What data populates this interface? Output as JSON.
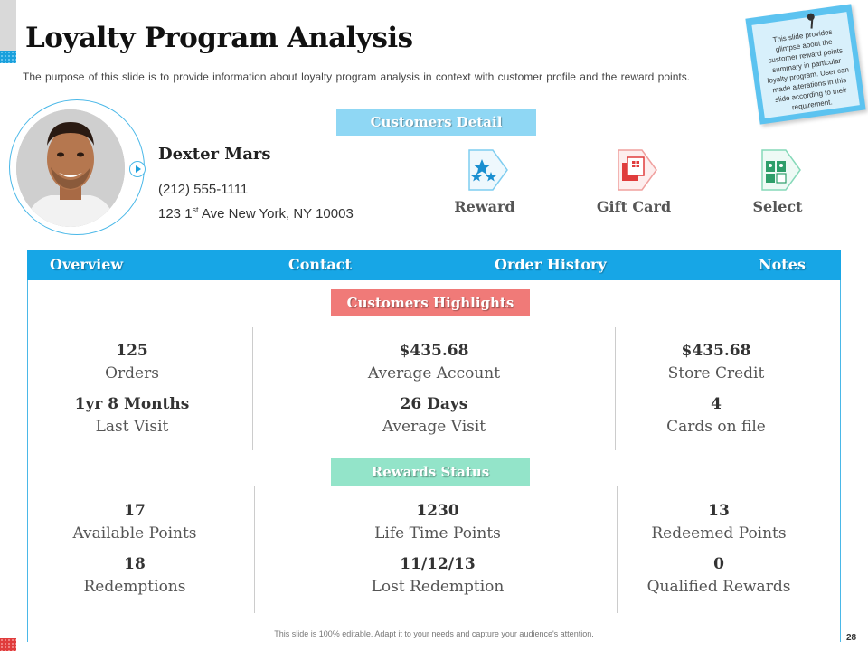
{
  "header": {
    "title": "Loyalty Program Analysis",
    "subtitle": "The purpose of this slide is to provide information about loyalty program analysis in context with customer profile and the reward points."
  },
  "note": {
    "text": "This slide provides glimpse about the customer reward points summary in particular loyalty program. User can made alterations in this slide according to their requirement."
  },
  "customer": {
    "name": "Dexter Mars",
    "phone": "(212) 555-1111",
    "address_number": "123 1",
    "address_suffix": "st",
    "address_rest": " Ave New York, NY 10003"
  },
  "sections": {
    "detail": "Customers Detail",
    "highlights": "Customers Highlights",
    "rewards": "Rewards Status"
  },
  "options": [
    {
      "label": "Reward",
      "icon": "stars-icon"
    },
    {
      "label": "Gift Card",
      "icon": "gift-card-icon"
    },
    {
      "label": "Select",
      "icon": "select-cards-icon"
    }
  ],
  "tabs": [
    "Overview",
    "Contact",
    "Order History",
    "Notes"
  ],
  "highlights": [
    {
      "value": "125",
      "label": "Orders"
    },
    {
      "value": "$435.68",
      "label": "Average Account"
    },
    {
      "value": "$435.68",
      "label": "Store Credit"
    },
    {
      "value": "1yr 8 Months",
      "label": "Last Visit"
    },
    {
      "value": "26 Days",
      "label": "Average Visit"
    },
    {
      "value": "4",
      "label": "Cards on file"
    }
  ],
  "rewards": [
    {
      "value": "17",
      "label": "Available Points"
    },
    {
      "value": "1230",
      "label": "Life Time Points"
    },
    {
      "value": "13",
      "label": "Redeemed Points"
    },
    {
      "value": "18",
      "label": "Redemptions"
    },
    {
      "value": "11/12/13",
      "label": "Lost Redemption"
    },
    {
      "value": "0",
      "label": "Qualified Rewards"
    }
  ],
  "footer": {
    "text": "This slide is 100% editable. Adapt it to your needs and capture your audience's attention.",
    "page": "28"
  },
  "colors": {
    "accent": "#17a6e6",
    "highlight_bar": "#f07a78",
    "rewards_bar": "#93e4c9",
    "detail_bar": "#8fd7f4"
  }
}
